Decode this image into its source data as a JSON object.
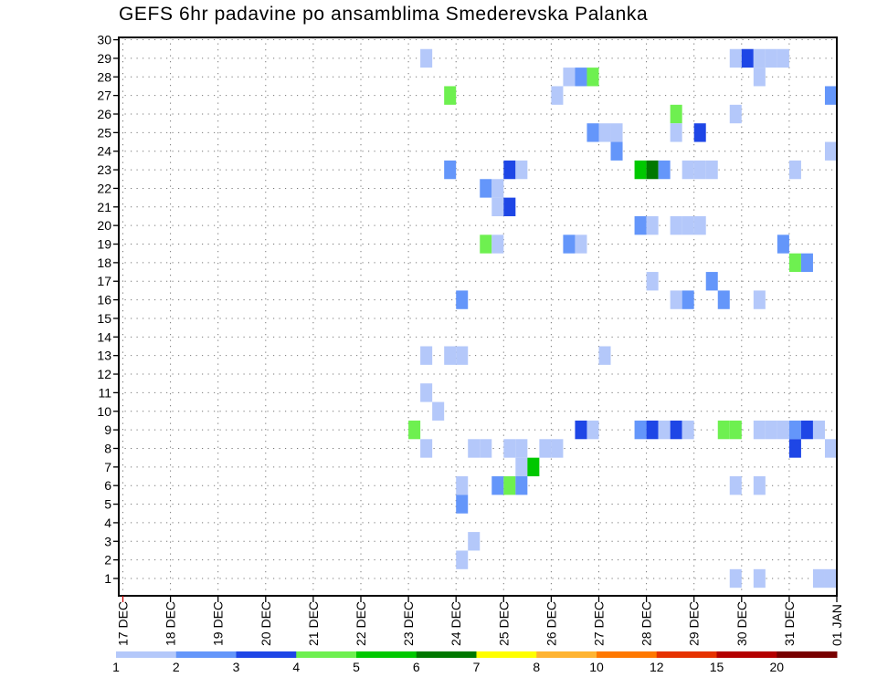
{
  "chart_data": {
    "type": "heatmap",
    "title": "GEFS 6hr padavine po ansamblima Smederevska Palanka",
    "xlabel": "",
    "ylabel": "",
    "x_unit": "hours since 17 DEC 00Z (6-hour steps)",
    "x_range_hours": [
      0,
      360
    ],
    "x_tick_labels": [
      "17 DEC",
      "18 DEC",
      "19 DEC",
      "20 DEC",
      "21 DEC",
      "22 DEC",
      "23 DEC",
      "24 DEC",
      "25 DEC",
      "26 DEC",
      "27 DEC",
      "28 DEC",
      "29 DEC",
      "30 DEC",
      "31 DEC",
      "01 JAN"
    ],
    "y_ticks": [
      1,
      2,
      3,
      4,
      5,
      6,
      7,
      8,
      9,
      10,
      11,
      12,
      13,
      14,
      15,
      16,
      17,
      18,
      19,
      20,
      21,
      22,
      23,
      24,
      25,
      26,
      27,
      28,
      29,
      30
    ],
    "y_range": [
      0,
      30
    ],
    "grid": true,
    "legend": {
      "placement": "bottom",
      "levels": [
        "1",
        "2",
        "3",
        "4",
        "5",
        "6",
        "7",
        "8",
        "10",
        "12",
        "15",
        "20"
      ],
      "thresholds": [
        1,
        2,
        3,
        4,
        5,
        6,
        7,
        8,
        10,
        12,
        15,
        20
      ],
      "colors": [
        "#b4c8fa",
        "#6496fa",
        "#1e46e6",
        "#6ef050",
        "#00c800",
        "#007800",
        "#ffff00",
        "#ffb432",
        "#ff7800",
        "#e63200",
        "#b40000",
        "#780000"
      ]
    },
    "cells": [
      {
        "m": 29,
        "h": 150,
        "v": 1.5
      },
      {
        "m": 29,
        "h": 306,
        "v": 1.5
      },
      {
        "m": 29,
        "h": 312,
        "v": 3.5
      },
      {
        "m": 29,
        "h": 318,
        "v": 1.5
      },
      {
        "m": 29,
        "h": 324,
        "v": 1.5
      },
      {
        "m": 29,
        "h": 330,
        "v": 1.5
      },
      {
        "m": 28,
        "h": 222,
        "v": 1.5
      },
      {
        "m": 28,
        "h": 228,
        "v": 2.5
      },
      {
        "m": 28,
        "h": 234,
        "v": 4.5
      },
      {
        "m": 28,
        "h": 318,
        "v": 1.5
      },
      {
        "m": 27,
        "h": 162,
        "v": 4.5
      },
      {
        "m": 27,
        "h": 216,
        "v": 1.5
      },
      {
        "m": 27,
        "h": 354,
        "v": 2.5
      },
      {
        "m": 26,
        "h": 276,
        "v": 4.5
      },
      {
        "m": 26,
        "h": 306,
        "v": 1.5
      },
      {
        "m": 25,
        "h": 234,
        "v": 2.5
      },
      {
        "m": 25,
        "h": 240,
        "v": 1.5
      },
      {
        "m": 25,
        "h": 246,
        "v": 1.5
      },
      {
        "m": 25,
        "h": 276,
        "v": 1.5
      },
      {
        "m": 25,
        "h": 288,
        "v": 3.5
      },
      {
        "m": 24,
        "h": 246,
        "v": 2.5
      },
      {
        "m": 24,
        "h": 354,
        "v": 1.5
      },
      {
        "m": 23,
        "h": 162,
        "v": 2.5
      },
      {
        "m": 23,
        "h": 192,
        "v": 3.5
      },
      {
        "m": 23,
        "h": 198,
        "v": 1.5
      },
      {
        "m": 23,
        "h": 258,
        "v": 5.5
      },
      {
        "m": 23,
        "h": 264,
        "v": 6.5
      },
      {
        "m": 23,
        "h": 270,
        "v": 2.5
      },
      {
        "m": 23,
        "h": 282,
        "v": 1.5
      },
      {
        "m": 23,
        "h": 288,
        "v": 1.5
      },
      {
        "m": 23,
        "h": 294,
        "v": 1.5
      },
      {
        "m": 23,
        "h": 336,
        "v": 1.5
      },
      {
        "m": 22,
        "h": 180,
        "v": 2.5
      },
      {
        "m": 22,
        "h": 186,
        "v": 1.5
      },
      {
        "m": 21,
        "h": 186,
        "v": 1.5
      },
      {
        "m": 21,
        "h": 192,
        "v": 3.5
      },
      {
        "m": 20,
        "h": 258,
        "v": 2.5
      },
      {
        "m": 20,
        "h": 264,
        "v": 1.5
      },
      {
        "m": 20,
        "h": 276,
        "v": 1.5
      },
      {
        "m": 20,
        "h": 282,
        "v": 1.5
      },
      {
        "m": 20,
        "h": 288,
        "v": 1.5
      },
      {
        "m": 19,
        "h": 180,
        "v": 4.5
      },
      {
        "m": 19,
        "h": 186,
        "v": 1.5
      },
      {
        "m": 19,
        "h": 222,
        "v": 2.5
      },
      {
        "m": 19,
        "h": 228,
        "v": 1.5
      },
      {
        "m": 19,
        "h": 330,
        "v": 2.5
      },
      {
        "m": 18,
        "h": 336,
        "v": 4.5
      },
      {
        "m": 18,
        "h": 342,
        "v": 2.5
      },
      {
        "m": 17,
        "h": 264,
        "v": 1.5
      },
      {
        "m": 17,
        "h": 294,
        "v": 2.5
      },
      {
        "m": 16,
        "h": 168,
        "v": 2.5
      },
      {
        "m": 16,
        "h": 276,
        "v": 1.5
      },
      {
        "m": 16,
        "h": 282,
        "v": 2.5
      },
      {
        "m": 16,
        "h": 300,
        "v": 2.5
      },
      {
        "m": 16,
        "h": 318,
        "v": 1.5
      },
      {
        "m": 13,
        "h": 150,
        "v": 1.5
      },
      {
        "m": 13,
        "h": 162,
        "v": 1.5
      },
      {
        "m": 13,
        "h": 168,
        "v": 1.5
      },
      {
        "m": 13,
        "h": 240,
        "v": 1.5
      },
      {
        "m": 11,
        "h": 150,
        "v": 1.5
      },
      {
        "m": 10,
        "h": 156,
        "v": 1.5
      },
      {
        "m": 9,
        "h": 144,
        "v": 4.5
      },
      {
        "m": 9,
        "h": 228,
        "v": 3.5
      },
      {
        "m": 9,
        "h": 234,
        "v": 1.5
      },
      {
        "m": 9,
        "h": 258,
        "v": 2.5
      },
      {
        "m": 9,
        "h": 264,
        "v": 3.5
      },
      {
        "m": 9,
        "h": 270,
        "v": 1.5
      },
      {
        "m": 9,
        "h": 276,
        "v": 3.5
      },
      {
        "m": 9,
        "h": 282,
        "v": 1.5
      },
      {
        "m": 9,
        "h": 300,
        "v": 4.5
      },
      {
        "m": 9,
        "h": 306,
        "v": 4.5
      },
      {
        "m": 9,
        "h": 318,
        "v": 1.5
      },
      {
        "m": 9,
        "h": 324,
        "v": 1.5
      },
      {
        "m": 9,
        "h": 330,
        "v": 1.5
      },
      {
        "m": 9,
        "h": 336,
        "v": 2.5
      },
      {
        "m": 9,
        "h": 342,
        "v": 3.5
      },
      {
        "m": 9,
        "h": 348,
        "v": 1.5
      },
      {
        "m": 8,
        "h": 150,
        "v": 1.5
      },
      {
        "m": 8,
        "h": 174,
        "v": 1.5
      },
      {
        "m": 8,
        "h": 180,
        "v": 1.5
      },
      {
        "m": 8,
        "h": 192,
        "v": 1.5
      },
      {
        "m": 8,
        "h": 198,
        "v": 1.5
      },
      {
        "m": 8,
        "h": 210,
        "v": 1.5
      },
      {
        "m": 8,
        "h": 216,
        "v": 1.5
      },
      {
        "m": 8,
        "h": 336,
        "v": 3.5
      },
      {
        "m": 8,
        "h": 354,
        "v": 1.5
      },
      {
        "m": 7,
        "h": 198,
        "v": 1.5
      },
      {
        "m": 7,
        "h": 204,
        "v": 5.5
      },
      {
        "m": 6,
        "h": 168,
        "v": 1.5
      },
      {
        "m": 6,
        "h": 186,
        "v": 2.5
      },
      {
        "m": 6,
        "h": 192,
        "v": 4.5
      },
      {
        "m": 6,
        "h": 198,
        "v": 2.5
      },
      {
        "m": 6,
        "h": 306,
        "v": 1.5
      },
      {
        "m": 6,
        "h": 318,
        "v": 1.5
      },
      {
        "m": 5,
        "h": 168,
        "v": 2.5
      },
      {
        "m": 3,
        "h": 174,
        "v": 1.5
      },
      {
        "m": 2,
        "h": 168,
        "v": 1.5
      },
      {
        "m": 1,
        "h": 306,
        "v": 1.5
      },
      {
        "m": 1,
        "h": 318,
        "v": 1.5
      },
      {
        "m": 1,
        "h": 348,
        "v": 1.5
      },
      {
        "m": 1,
        "h": 354,
        "v": 1.5
      }
    ]
  }
}
